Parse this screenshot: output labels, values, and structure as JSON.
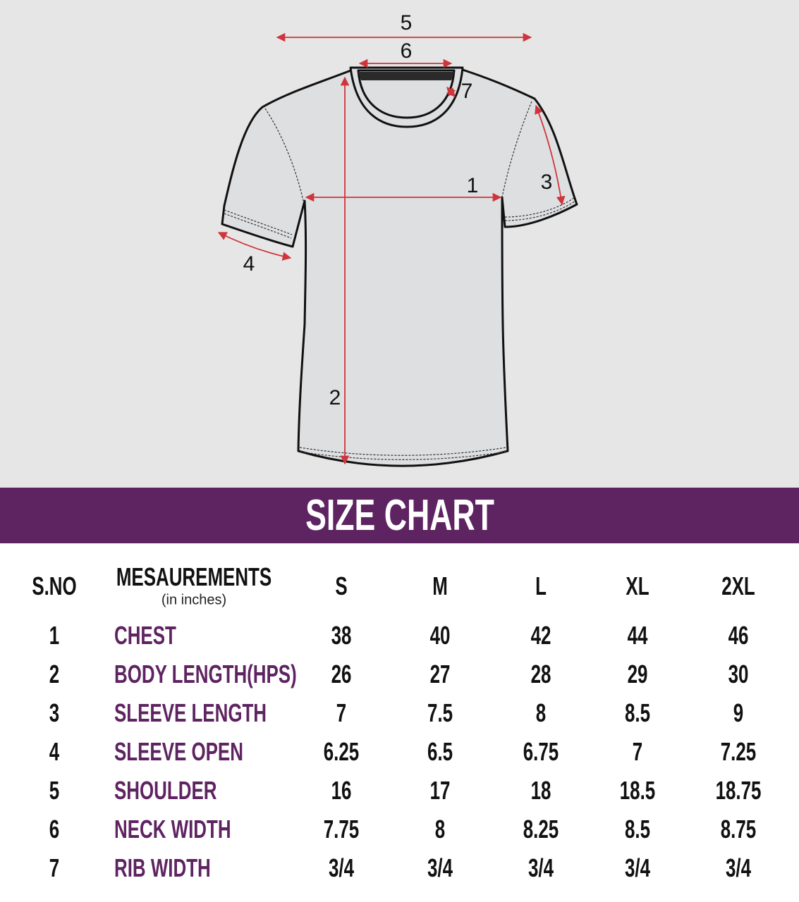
{
  "diagram": {
    "labels": [
      "1",
      "2",
      "3",
      "4",
      "5",
      "6",
      "7"
    ],
    "arrow_color": "#d0343c"
  },
  "banner": {
    "title": "SIZE CHART",
    "color": "#5e2361"
  },
  "table": {
    "headers": {
      "sno": "S.NO",
      "measurement": "MESAUREMENTS",
      "unit": "(in inches)",
      "sizes": [
        "S",
        "M",
        "L",
        "XL",
        "2XL"
      ]
    },
    "rows": [
      {
        "sno": "1",
        "name": "CHEST",
        "values": [
          "38",
          "40",
          "42",
          "44",
          "46"
        ]
      },
      {
        "sno": "2",
        "name": "BODY LENGTH(HPS)",
        "values": [
          "26",
          "27",
          "28",
          "29",
          "30"
        ]
      },
      {
        "sno": "3",
        "name": "SLEEVE LENGTH",
        "values": [
          "7",
          "7.5",
          "8",
          "8.5",
          "9"
        ]
      },
      {
        "sno": "4",
        "name": "SLEEVE OPEN",
        "values": [
          "6.25",
          "6.5",
          "6.75",
          "7",
          "7.25"
        ]
      },
      {
        "sno": "5",
        "name": "SHOULDER",
        "values": [
          "16",
          "17",
          "18",
          "18.5",
          "18.75"
        ]
      },
      {
        "sno": "6",
        "name": "NECK WIDTH",
        "values": [
          "7.75",
          "8",
          "8.25",
          "8.5",
          "8.75"
        ]
      },
      {
        "sno": "7",
        "name": "RIB WIDTH",
        "values": [
          "3/4",
          "3/4",
          "3/4",
          "3/4",
          "3/4"
        ]
      }
    ]
  }
}
